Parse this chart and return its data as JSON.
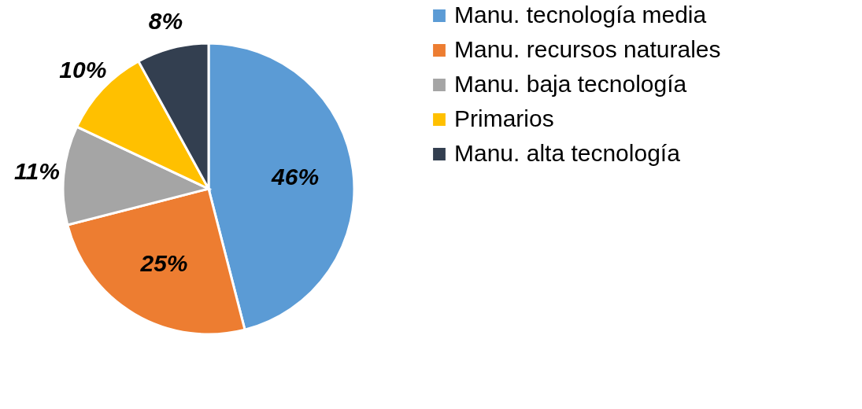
{
  "chart_data": {
    "type": "pie",
    "categories": [
      "Manu. tecnología media",
      "Manu. recursos naturales",
      "Manu. baja tecnología",
      "Primarios",
      "Manu. alta tecnología"
    ],
    "values": [
      46,
      25,
      11,
      10,
      8
    ],
    "colors": [
      "#5b9bd5",
      "#ed7d31",
      "#a5a5a5",
      "#ffc000",
      "#333f50"
    ],
    "value_labels": [
      "46%",
      "25%",
      "11%",
      "10%",
      "8%"
    ],
    "legend": "right"
  }
}
